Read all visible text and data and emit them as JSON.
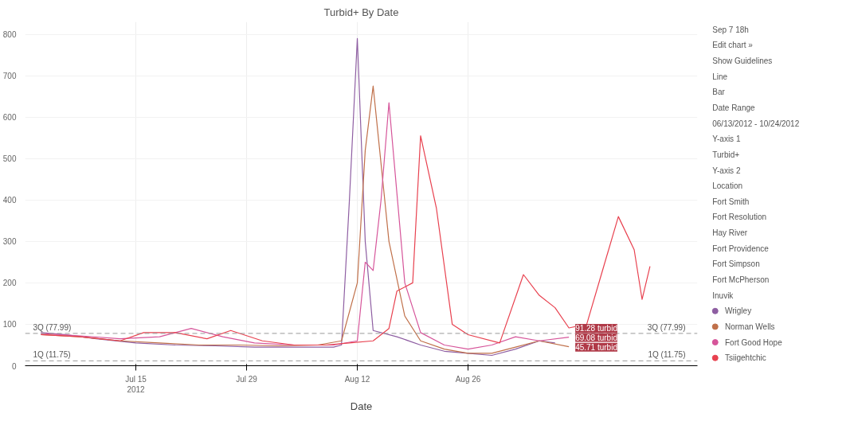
{
  "chart_data": {
    "type": "line",
    "title": "Turbid+ By Date",
    "xlabel": "Date",
    "xlim": [
      "2012-07-01",
      "2012-09-24"
    ],
    "ylim": [
      0,
      830
    ],
    "xticks": [
      {
        "value": "2012-07-15",
        "label": "Jul 15\n2012"
      },
      {
        "value": "2012-07-29",
        "label": "Jul 29"
      },
      {
        "value": "2012-08-12",
        "label": "Aug 12"
      },
      {
        "value": "2012-08-26",
        "label": "Aug 26"
      }
    ],
    "yticks": [
      0,
      100,
      200,
      300,
      400,
      500,
      600,
      700,
      800
    ],
    "grid": true,
    "legend": "right",
    "marker": "none",
    "line_style": "solid",
    "ref_lines": [
      {
        "axis": "y",
        "value": 77.99,
        "label": "3Q (77.99)",
        "color": "#999999",
        "line_style": "dashed"
      },
      {
        "axis": "y",
        "value": 11.75,
        "label": "1Q (11.75)",
        "color": "#999999",
        "line_style": "dashed"
      }
    ],
    "series": [
      {
        "name": "Wrigley",
        "color": "#8e5ea2",
        "x": [
          "2012-07-03",
          "2012-07-06",
          "2012-07-10",
          "2012-07-15",
          "2012-07-20",
          "2012-07-25",
          "2012-07-30",
          "2012-08-04",
          "2012-08-09",
          "2012-08-10",
          "2012-08-11",
          "2012-08-12",
          "2012-08-13",
          "2012-08-14",
          "2012-08-17",
          "2012-08-20",
          "2012-08-23",
          "2012-08-26",
          "2012-08-29",
          "2012-09-01",
          "2012-09-04",
          "2012-09-06"
        ],
        "values": [
          80,
          75,
          65,
          55,
          50,
          48,
          45,
          45,
          45,
          50,
          400,
          790,
          300,
          85,
          70,
          50,
          35,
          30,
          25,
          40,
          60,
          55
        ]
      },
      {
        "name": "Norman Wells",
        "color": "#c0704a",
        "x": [
          "2012-07-03",
          "2012-07-08",
          "2012-07-13",
          "2012-07-18",
          "2012-07-23",
          "2012-07-28",
          "2012-08-02",
          "2012-08-07",
          "2012-08-10",
          "2012-08-12",
          "2012-08-13",
          "2012-08-14",
          "2012-08-16",
          "2012-08-18",
          "2012-08-20",
          "2012-08-23",
          "2012-08-26",
          "2012-08-29",
          "2012-09-01",
          "2012-09-04",
          "2012-09-07T18:00"
        ],
        "values": [
          75,
          70,
          60,
          55,
          50,
          50,
          48,
          50,
          60,
          200,
          520,
          675,
          300,
          120,
          60,
          40,
          30,
          30,
          45,
          60,
          45.71
        ]
      },
      {
        "name": "Fort Good Hope",
        "color": "#d6559a",
        "x": [
          "2012-07-03",
          "2012-07-08",
          "2012-07-13",
          "2012-07-18",
          "2012-07-22",
          "2012-07-26",
          "2012-07-30",
          "2012-08-04",
          "2012-08-09",
          "2012-08-12",
          "2012-08-13",
          "2012-08-14",
          "2012-08-15",
          "2012-08-16",
          "2012-08-18",
          "2012-08-20",
          "2012-08-23",
          "2012-08-26",
          "2012-08-29",
          "2012-09-01",
          "2012-09-04",
          "2012-09-07T18:00"
        ],
        "values": [
          78,
          72,
          65,
          70,
          90,
          70,
          55,
          50,
          50,
          60,
          250,
          230,
          400,
          635,
          200,
          80,
          50,
          40,
          50,
          70,
          60,
          69.08
        ]
      },
      {
        "name": "Tsiigehtchic",
        "color": "#e8414f",
        "x": [
          "2012-07-03",
          "2012-07-08",
          "2012-07-13",
          "2012-07-16",
          "2012-07-20",
          "2012-07-24",
          "2012-07-27",
          "2012-07-31",
          "2012-08-04",
          "2012-08-08",
          "2012-08-11",
          "2012-08-14",
          "2012-08-16",
          "2012-08-17",
          "2012-08-19",
          "2012-08-20",
          "2012-08-22",
          "2012-08-24",
          "2012-08-26",
          "2012-08-30",
          "2012-09-02",
          "2012-09-04",
          "2012-09-06",
          "2012-09-07T18:00",
          "2012-09-10",
          "2012-09-12",
          "2012-09-14",
          "2012-09-16",
          "2012-09-17",
          "2012-09-18"
        ],
        "values": [
          75,
          70,
          60,
          80,
          80,
          65,
          85,
          60,
          50,
          50,
          55,
          60,
          90,
          180,
          200,
          555,
          380,
          100,
          75,
          55,
          220,
          170,
          140,
          91.28,
          100,
          230,
          360,
          280,
          160,
          240
        ]
      }
    ],
    "annotations": [
      {
        "text": "91.28 turbid",
        "x": "2012-09-07T18:00",
        "y": 91.28
      },
      {
        "text": "69.08 turbid",
        "x": "2012-09-07T18:00",
        "y": 69.08
      },
      {
        "text": "45.71 turbid",
        "x": "2012-09-07T18:00",
        "y": 45.71
      },
      "Sep 7 18h",
      "Edit chart »",
      "Show Guidelines",
      "Line",
      "Bar",
      "Date Range",
      "06/13/2012 - 10/24/2012",
      "Y-axis 1",
      "Turbid+",
      "Y-axis 2",
      "Location",
      "Fort Smith",
      "Fort Resolution",
      "Hay River",
      "Fort Providence",
      "Fort Simpson",
      "Fort McPherson",
      "Inuvik"
    ]
  }
}
